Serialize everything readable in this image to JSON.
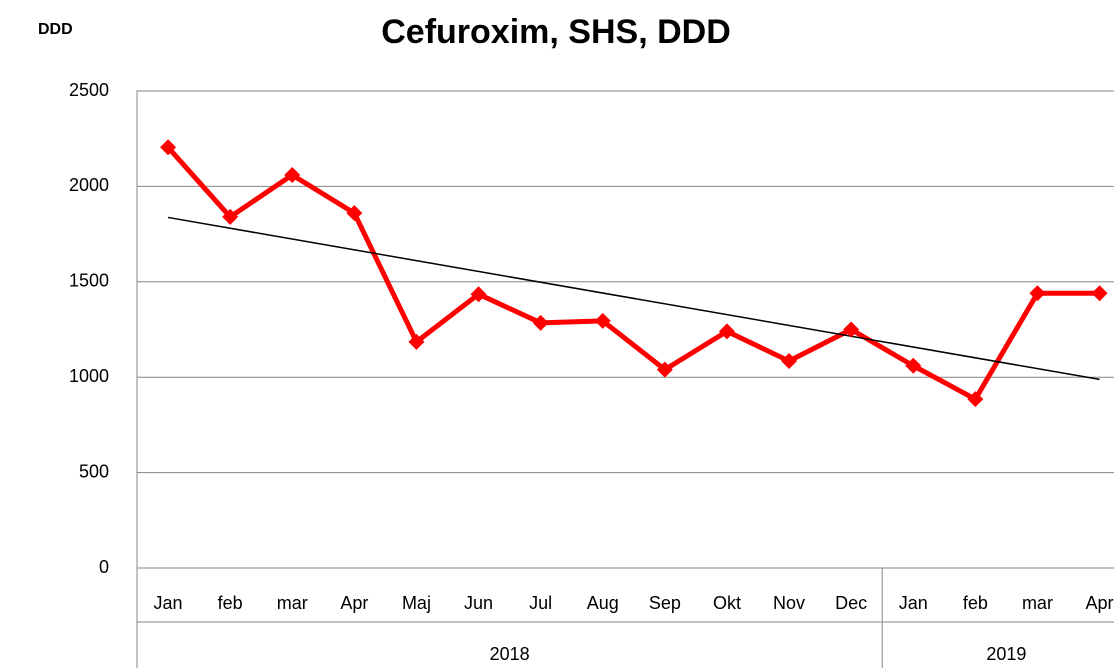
{
  "chart_data": {
    "type": "line",
    "title": "Cefuroxim, SHS, DDD",
    "y_label": "DDD",
    "categories": [
      "Jan",
      "feb",
      "mar",
      "Apr",
      "Maj",
      "Jun",
      "Jul",
      "Aug",
      "Sep",
      "Okt",
      "Nov",
      "Dec",
      "Jan",
      "feb",
      "mar",
      "Apr"
    ],
    "x_groups": [
      {
        "label": "2018",
        "count": 12
      },
      {
        "label": "2019",
        "count": 4
      }
    ],
    "series": [
      {
        "name": "Cefuroxim",
        "color": "#ff0000",
        "values": [
          2205,
          1840,
          2060,
          1860,
          1185,
          1435,
          1285,
          1295,
          1040,
          1240,
          1085,
          1250,
          1060,
          885,
          1440,
          1440
        ]
      }
    ],
    "trendline": true,
    "trendline_color": "#000000",
    "ylim": [
      0,
      2500
    ],
    "yticks": [
      0,
      500,
      1000,
      1500,
      2000,
      2500
    ],
    "grid": true
  }
}
